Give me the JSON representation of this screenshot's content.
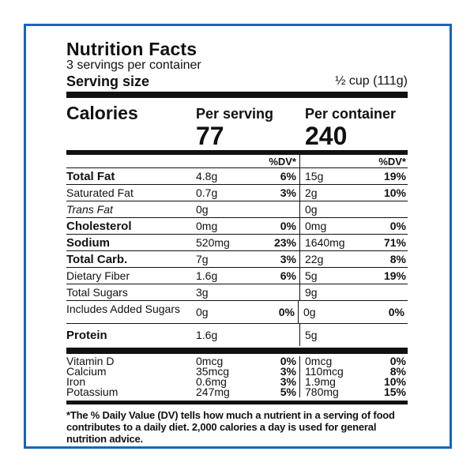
{
  "label": {
    "title": "Nutrition Facts",
    "servings": "3 servings per container",
    "serving_size_label": "Serving size",
    "serving_size_value": "½ cup (111g)",
    "calories_label": "Calories",
    "per_serving_label": "Per serving",
    "per_serving_calories": "77",
    "per_container_label": "Per container",
    "per_container_calories": "240",
    "dv_header": "%DV*",
    "nutrients": [
      {
        "name": "Total Fat",
        "amt": "4.8g",
        "dv": "6%",
        "amt2": "15g",
        "dv2": "19%"
      },
      {
        "name": "Saturated Fat",
        "amt": "0.7g",
        "dv": "3%",
        "amt2": "2g",
        "dv2": "10%"
      },
      {
        "name": "Trans Fat",
        "amt": "0g",
        "dv": "",
        "amt2": "0g",
        "dv2": ""
      },
      {
        "name": "Cholesterol",
        "amt": "0mg",
        "dv": "0%",
        "amt2": "0mg",
        "dv2": "0%"
      },
      {
        "name": "Sodium",
        "amt": "520mg",
        "dv": "23%",
        "amt2": "1640mg",
        "dv2": "71%"
      },
      {
        "name": "Total Carb.",
        "amt": "7g",
        "dv": "3%",
        "amt2": "22g",
        "dv2": "8%"
      },
      {
        "name": "Dietary Fiber",
        "amt": "1.6g",
        "dv": "6%",
        "amt2": "5g",
        "dv2": "19%"
      },
      {
        "name": "Total Sugars",
        "amt": "3g",
        "dv": "",
        "amt2": "9g",
        "dv2": ""
      },
      {
        "name": "Includes Added Sugars",
        "amt": "0g",
        "dv": "0%",
        "amt2": "0g",
        "dv2": "0%"
      },
      {
        "name": "Protein",
        "amt": "1.6g",
        "dv": "",
        "amt2": "5g",
        "dv2": ""
      }
    ],
    "vitamins": [
      {
        "name": "Vitamin D",
        "amt": "0mcg",
        "dv": "0%",
        "amt2": "0mcg",
        "dv2": "0%"
      },
      {
        "name": "Calcium",
        "amt": "35mcg",
        "dv": "3%",
        "amt2": "110mcg",
        "dv2": "8%"
      },
      {
        "name": "Iron",
        "amt": "0.6mg",
        "dv": "3%",
        "amt2": "1.9mg",
        "dv2": "10%"
      },
      {
        "name": "Potassium",
        "amt": "247mg",
        "dv": "5%",
        "amt2": "780mg",
        "dv2": "15%"
      }
    ],
    "footnote": "*The % Daily Value (DV) tells how much a nutrient in a serving of food contributes to a daily diet. 2,000 calories a day is used for general nutrition advice."
  },
  "colors": {
    "frame": "#1565c0"
  }
}
